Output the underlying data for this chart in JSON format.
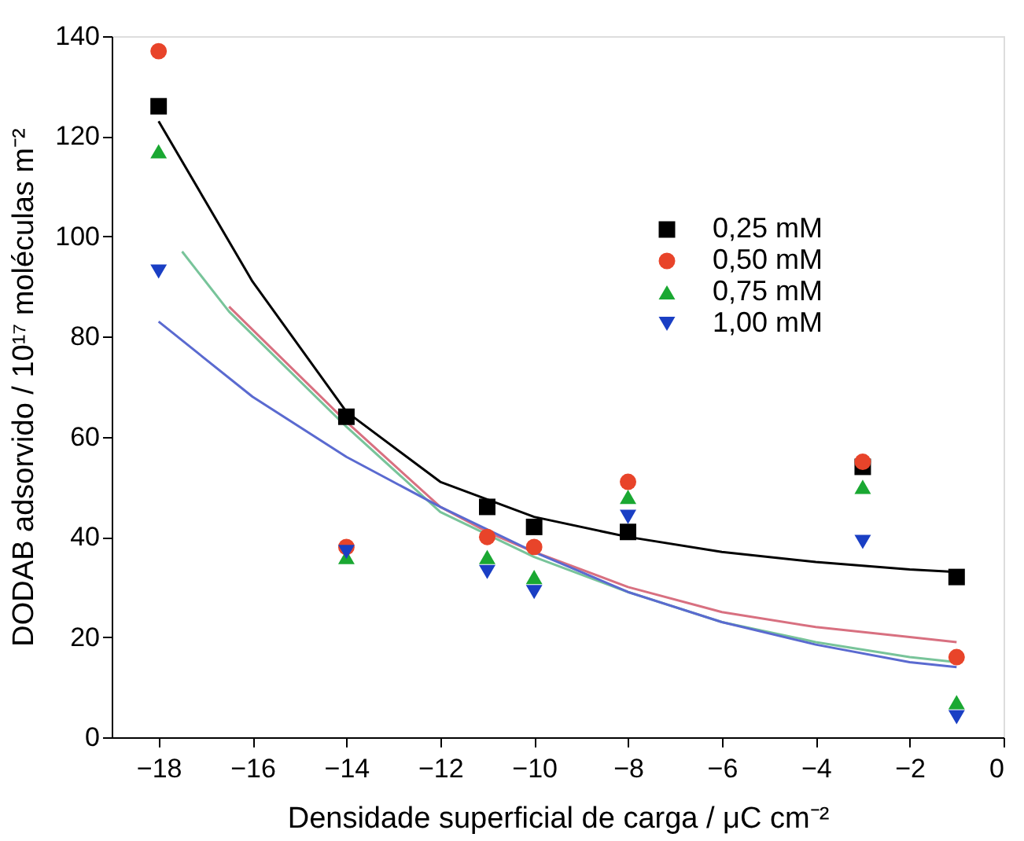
{
  "chart_data": {
    "type": "scatter",
    "xlabel": "Densidade superficial de carga / μC cm⁻²",
    "ylabel": "DODAB adsorvido / 10¹⁷ moléculas m⁻²",
    "x": [
      -18,
      -14,
      -11,
      -10,
      -8,
      -3,
      -1
    ],
    "series": [
      {
        "name": "0,25 mM",
        "color": "#000000",
        "marker": "square",
        "values": [
          126,
          64,
          46,
          42,
          41,
          54,
          32
        ]
      },
      {
        "name": "0,50 mM",
        "color": "#e8442a",
        "marker": "circle",
        "values": [
          137,
          38,
          40,
          38,
          51,
          55,
          16
        ]
      },
      {
        "name": "0,75 mM",
        "color": "#1aa832",
        "marker": "triangle",
        "values": [
          117,
          36,
          36,
          32,
          48,
          50,
          7
        ]
      },
      {
        "name": "1,00 mM",
        "color": "#1a3fc4",
        "marker": "triangle-down",
        "values": [
          93,
          37,
          33,
          29,
          44,
          39,
          4
        ]
      },
      {
        "type": "line",
        "color": "#000000",
        "x": [
          -18,
          -16,
          -14,
          -12,
          -10,
          -8,
          -6,
          -4,
          -2,
          -1
        ],
        "values": [
          123,
          91,
          65,
          51,
          44,
          40,
          37,
          35,
          33.5,
          33
        ]
      },
      {
        "type": "line",
        "color": "#d87080",
        "x": [
          -16.5,
          -14,
          -12,
          -11,
          -10,
          -8,
          -6,
          -4,
          -2,
          -1
        ],
        "values": [
          86,
          63,
          46,
          41,
          37,
          30,
          25,
          22,
          20,
          19
        ]
      },
      {
        "type": "line",
        "color": "#78c49a",
        "x": [
          -17.5,
          -16.5,
          -14,
          -12,
          -10,
          -8,
          -6,
          -4,
          -2,
          -1
        ],
        "values": [
          97,
          85,
          62,
          45,
          36,
          29,
          23,
          19,
          16,
          15
        ]
      },
      {
        "type": "line",
        "color": "#5a6ad0",
        "x": [
          -18,
          -16,
          -14,
          -12,
          -10,
          -8,
          -6,
          -4,
          -2,
          -1
        ],
        "values": [
          83,
          68,
          56,
          46,
          37,
          29,
          23,
          18.5,
          15,
          14
        ]
      }
    ],
    "xlim": [
      -19,
      0
    ],
    "xticks": [
      -18,
      -16,
      -14,
      -12,
      -10,
      -8,
      -6,
      -4,
      -2,
      0
    ],
    "ylim": [
      0,
      140
    ],
    "yticks": [
      0,
      20,
      40,
      60,
      80,
      100,
      120,
      140
    ],
    "legend": "top right",
    "grid": false
  }
}
